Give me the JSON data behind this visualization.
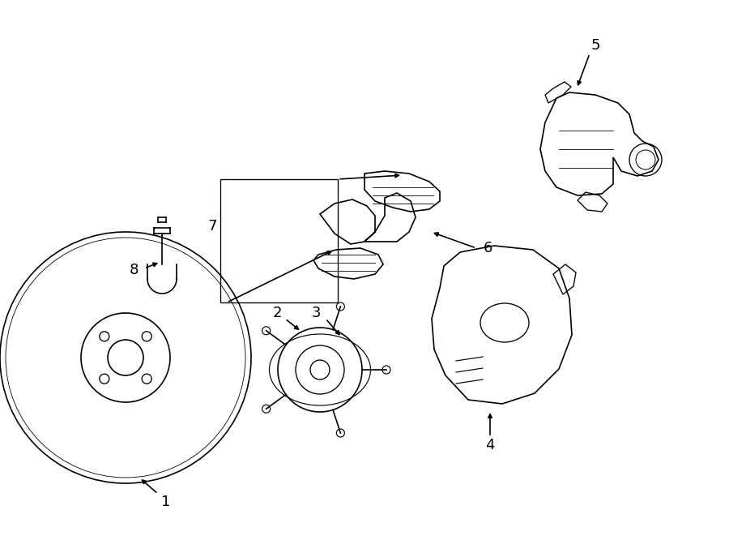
{
  "background_color": "#ffffff",
  "line_color": "#000000",
  "fig_width": 9.0,
  "fig_height": 6.61,
  "dpi": 100,
  "label_fontsize": 13
}
